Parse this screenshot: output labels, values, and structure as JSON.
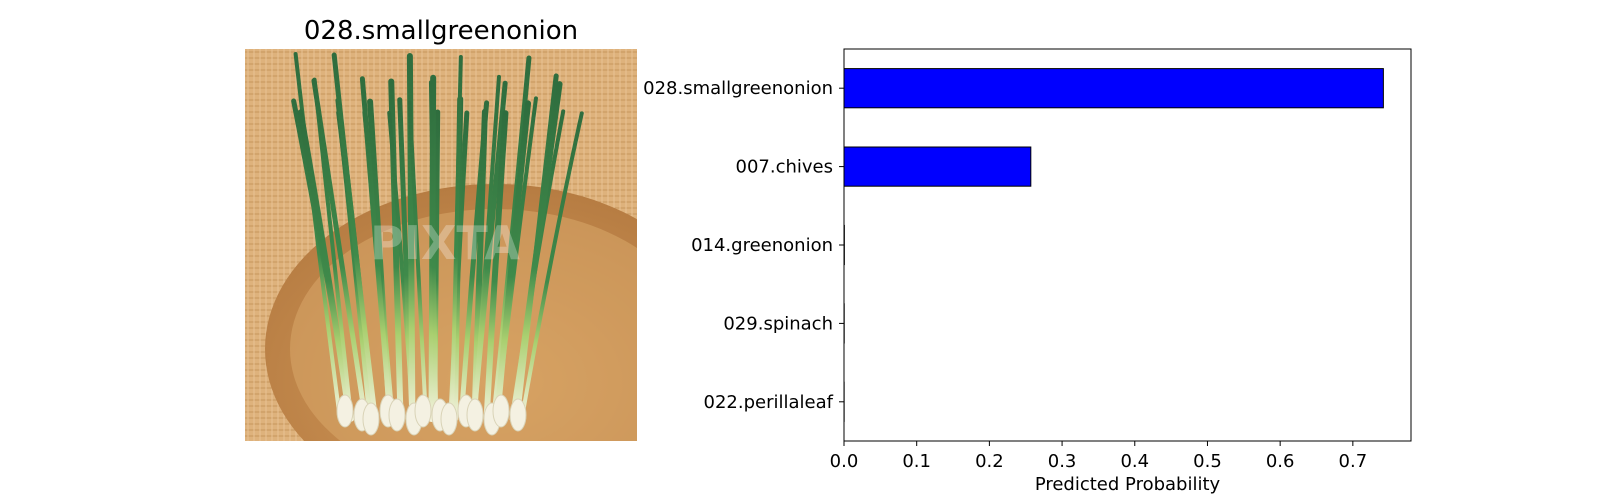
{
  "image_panel": {
    "title": "028.smallgreenonion",
    "photo_subject": "small green onion bunch on woven basket",
    "watermark": "PIXTA"
  },
  "chart_data": {
    "type": "bar",
    "orientation": "horizontal",
    "categories": [
      "028.smallgreenonion",
      "007.chives",
      "014.greenonion",
      "029.spinach",
      "022.perillaleaf"
    ],
    "values": [
      0.742,
      0.257,
      0.0005,
      0.0003,
      0.0002
    ],
    "xlabel": "Predicted Probability",
    "ylabel": "",
    "xlim": [
      0,
      0.78
    ],
    "xticks": [
      0.0,
      0.1,
      0.2,
      0.3,
      0.4,
      0.5,
      0.6,
      0.7
    ],
    "xtick_labels": [
      "0.0",
      "0.1",
      "0.2",
      "0.3",
      "0.4",
      "0.5",
      "0.6",
      "0.7"
    ],
    "bar_color": "#0000ff",
    "bar_edge_color": "#000000",
    "grid": false
  }
}
